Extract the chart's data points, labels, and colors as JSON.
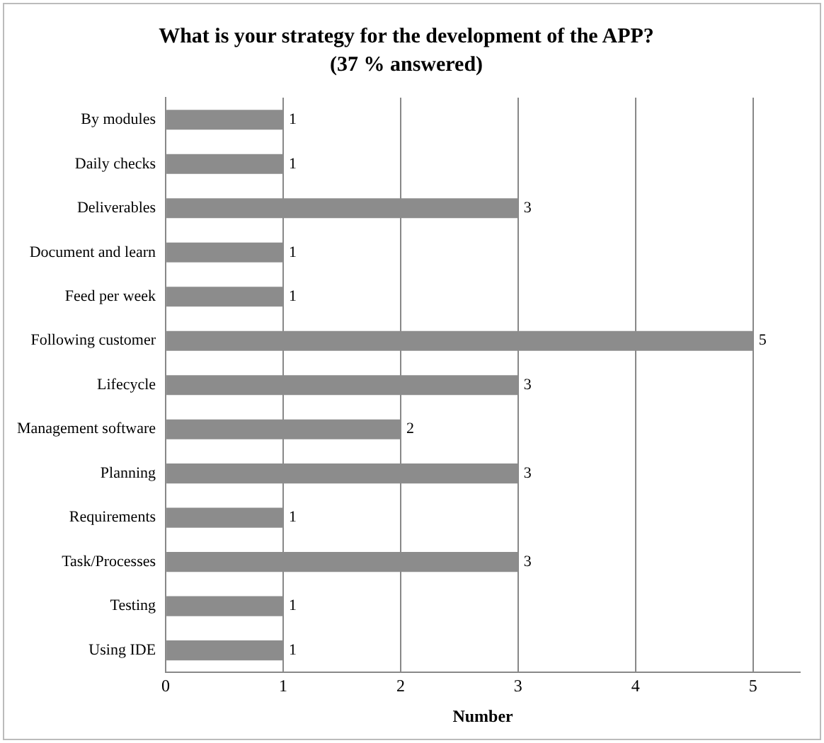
{
  "chart_data": {
    "type": "bar",
    "orientation": "horizontal",
    "title": "What is your strategy for the development of the APP?",
    "subtitle": "(37 % answered)",
    "xlabel": "Number",
    "categories": [
      "By modules",
      "Daily checks",
      "Deliverables",
      "Document and learn",
      "Feed per week",
      "Following customer",
      "Lifecycle",
      "Management software",
      "Planning",
      "Requirements",
      "Task/Processes",
      "Testing",
      "Using IDE"
    ],
    "values": [
      1,
      1,
      3,
      1,
      1,
      5,
      3,
      2,
      3,
      1,
      3,
      1,
      1
    ],
    "color": "#8c8c8c",
    "xlim": [
      0,
      5.4
    ],
    "xticks": [
      0,
      1,
      2,
      3,
      4,
      5
    ],
    "grid": "x",
    "data_labels": true,
    "legend": false
  }
}
